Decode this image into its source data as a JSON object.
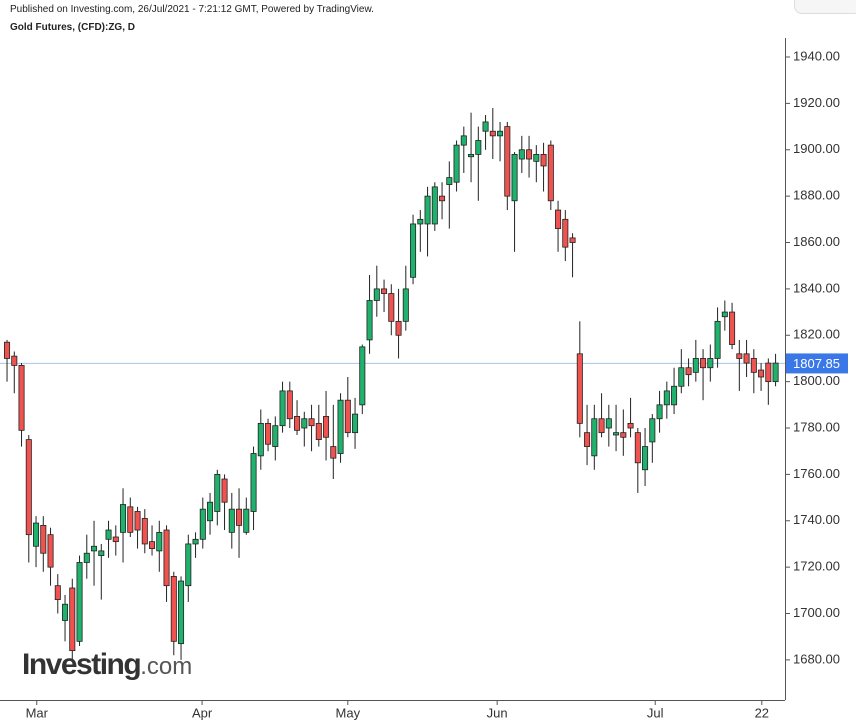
{
  "chart_data": {
    "type": "candlestick",
    "published": "Published on Investing.com, 26/Jul/2021 - 7:21:12 GMT, Powered by TradingView.",
    "title": "Gold Futures, (CFD):ZG, D",
    "watermark": [
      "Investing",
      ".com"
    ],
    "up_color": "#20b26c",
    "down_color": "#ef5350",
    "last_price": 1807.85,
    "last_price_line_color": "#a9c4e8",
    "last_price_tag_color": "#3b78e7",
    "ylim": [
      1662.7,
      1948.2
    ],
    "yticks": [
      {
        "value": 1680,
        "label": "1680.00"
      },
      {
        "value": 1700,
        "label": "1700.00"
      },
      {
        "value": 1720,
        "label": "1720.00"
      },
      {
        "value": 1740,
        "label": "1740.00"
      },
      {
        "value": 1760,
        "label": "1760.00"
      },
      {
        "value": 1780,
        "label": "1780.00"
      },
      {
        "value": 1800,
        "label": "1800.00"
      },
      {
        "value": 1820,
        "label": "1820.00"
      },
      {
        "value": 1840,
        "label": "1840.00"
      },
      {
        "value": 1860,
        "label": "1860.00"
      },
      {
        "value": 1880,
        "label": "1880.00"
      },
      {
        "value": 1900,
        "label": "1900.00"
      },
      {
        "value": 1920,
        "label": "1920.00"
      },
      {
        "value": 1940,
        "label": "1940.00"
      }
    ],
    "xlim": [
      -0.97,
      107.3
    ],
    "xticks": [
      {
        "value": 4.1,
        "label": "Mar"
      },
      {
        "value": 26.9,
        "label": "Apr"
      },
      {
        "value": 47,
        "label": "May"
      },
      {
        "value": 67.6,
        "label": "Jun"
      },
      {
        "value": 89.4,
        "label": "Jul"
      },
      {
        "value": 104.1,
        "label": "22"
      }
    ],
    "open": [
      1817,
      1811,
      1807,
      1775,
      1729,
      1738,
      1734,
      1712,
      1697,
      1711,
      1688,
      1722,
      1727,
      1725,
      1732,
      1733,
      1735,
      1746,
      1744,
      1741,
      1731,
      1727,
      1736,
      1716,
      1687,
      1712,
      1730,
      1732,
      1740,
      1744,
      1758,
      1735,
      1745,
      1735,
      1744,
      1768,
      1782,
      1772,
      1781,
      1796,
      1785,
      1780,
      1784,
      1782,
      1785,
      1772,
      1769,
      1792,
      1778,
      1790,
      1818,
      1835,
      1840,
      1838,
      1826,
      1826,
      1845,
      1868,
      1868,
      1868,
      1880,
      1885,
      1886,
      1902,
      1897,
      1898,
      1908,
      1908,
      1906,
      1910,
      1878,
      1896,
      1900,
      1895,
      1898,
      1902,
      1874,
      1870,
      1862,
      1812,
      1778,
      1768,
      1784,
      1780,
      1777,
      1778,
      1782,
      1778,
      1762,
      1774,
      1784,
      1790,
      1790,
      1798,
      1806,
      1804,
      1810,
      1806,
      1810,
      1828,
      1830,
      1812,
      1812,
      1810,
      1805,
      1808,
      1800
    ],
    "high": [
      1818,
      1813,
      1808,
      1777,
      1742,
      1742,
      1737,
      1717,
      1708,
      1715,
      1725,
      1734,
      1740,
      1730,
      1740,
      1738,
      1754,
      1750,
      1746,
      1745,
      1738,
      1740,
      1738,
      1718,
      1716,
      1734,
      1735,
      1750,
      1752,
      1762,
      1760,
      1752,
      1754,
      1750,
      1772,
      1788,
      1784,
      1785,
      1800,
      1800,
      1792,
      1787,
      1790,
      1790,
      1796,
      1790,
      1795,
      1802,
      1793,
      1816,
      1846,
      1850,
      1844,
      1842,
      1840,
      1850,
      1872,
      1874,
      1884,
      1886,
      1886,
      1895,
      1904,
      1910,
      1916,
      1910,
      1915,
      1918,
      1912,
      1912,
      1899,
      1906,
      1906,
      1902,
      1903,
      1904,
      1878,
      1874,
      1864,
      1826,
      1790,
      1790,
      1795,
      1790,
      1790,
      1788,
      1793,
      1780,
      1780,
      1786,
      1796,
      1800,
      1806,
      1814,
      1810,
      1818,
      1814,
      1816,
      1832,
      1835,
      1834,
      1818,
      1818,
      1814,
      1808,
      1810,
      1812
    ],
    "low": [
      1800,
      1795,
      1772,
      1722,
      1720,
      1718,
      1712,
      1700,
      1688,
      1680,
      1686,
      1715,
      1712,
      1706,
      1724,
      1725,
      1722,
      1733,
      1728,
      1726,
      1725,
      1718,
      1705,
      1682,
      1680,
      1705,
      1724,
      1728,
      1734,
      1738,
      1736,
      1728,
      1724,
      1734,
      1736,
      1762,
      1770,
      1766,
      1778,
      1780,
      1777,
      1772,
      1770,
      1772,
      1766,
      1758,
      1765,
      1776,
      1771,
      1786,
      1812,
      1828,
      1830,
      1820,
      1810,
      1822,
      1842,
      1856,
      1854,
      1865,
      1870,
      1866,
      1882,
      1890,
      1886,
      1878,
      1900,
      1896,
      1895,
      1874,
      1856,
      1890,
      1888,
      1886,
      1882,
      1874,
      1856,
      1852,
      1845,
      1776,
      1764,
      1762,
      1776,
      1772,
      1770,
      1768,
      1776,
      1752,
      1755,
      1765,
      1778,
      1784,
      1786,
      1795,
      1798,
      1800,
      1792,
      1800,
      1806,
      1822,
      1814,
      1796,
      1802,
      1795,
      1796,
      1790,
      1798
    ],
    "close": [
      1810,
      1807,
      1779,
      1734,
      1739,
      1726,
      1720,
      1706,
      1704,
      1684,
      1722,
      1726,
      1729,
      1727,
      1736,
      1731,
      1747,
      1735,
      1736,
      1730,
      1728,
      1735,
      1712,
      1688,
      1714,
      1730,
      1732,
      1745,
      1748,
      1760,
      1748,
      1745,
      1738,
      1745,
      1769,
      1782,
      1773,
      1781,
      1796,
      1784,
      1779,
      1784,
      1781,
      1775,
      1776,
      1767,
      1792,
      1778,
      1786,
      1815,
      1835,
      1840,
      1838,
      1826,
      1820,
      1840,
      1868,
      1870,
      1880,
      1884,
      1878,
      1888,
      1902,
      1906,
      1898,
      1904,
      1912,
      1906,
      1908,
      1880,
      1898,
      1900,
      1896,
      1898,
      1893,
      1878,
      1866,
      1858,
      1860,
      1782,
      1772,
      1784,
      1778,
      1784,
      1778,
      1776,
      1780,
      1765,
      1772,
      1784,
      1790,
      1796,
      1798,
      1806,
      1803,
      1810,
      1806,
      1810,
      1826,
      1830,
      1816,
      1810,
      1808,
      1804,
      1802,
      1800,
      1808
    ]
  }
}
